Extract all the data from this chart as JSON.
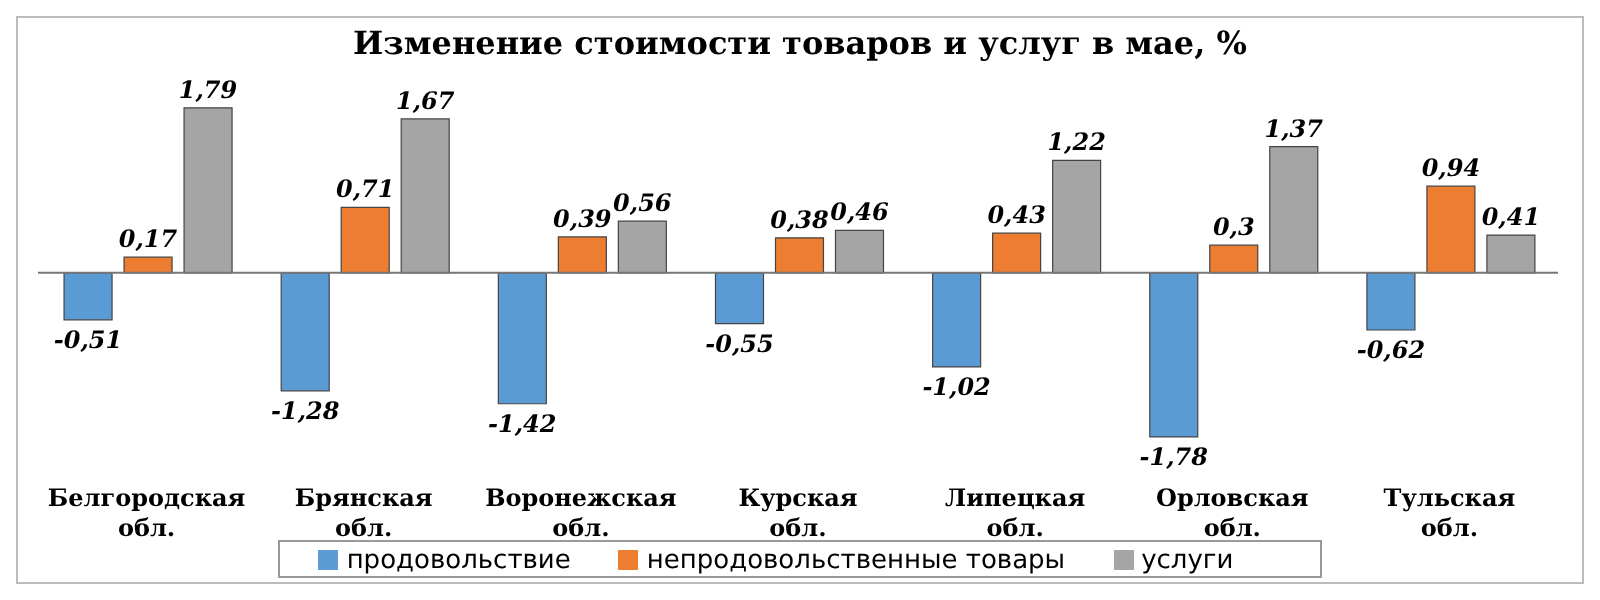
{
  "chart_data": {
    "type": "bar",
    "title": "Изменение стоимости товаров и услуг в мае, %",
    "categories": [
      "Белгородская обл.",
      "Брянская обл.",
      "Воронежская обл.",
      "Курская обл.",
      "Липецкая обл.",
      "Орловская обл.",
      "Тульская обл."
    ],
    "series": [
      {
        "name": "продовольствие",
        "color": "#5b9bd5",
        "values": [
          -0.51,
          -1.28,
          -1.42,
          -0.55,
          -1.02,
          -1.78,
          -0.62
        ],
        "value_labels": [
          "-0,51",
          "-1,28",
          "-1,42",
          "-0,55",
          "-1,02",
          "-1,78",
          "-0,62"
        ]
      },
      {
        "name": "непродовольственные товары",
        "color": "#ed7d31",
        "values": [
          0.17,
          0.71,
          0.39,
          0.38,
          0.43,
          0.3,
          0.94
        ],
        "value_labels": [
          "0,17",
          "0,71",
          "0,39",
          "0,38",
          "0,43",
          "0,3",
          "0,94"
        ]
      },
      {
        "name": "услуги",
        "color": "#a5a5a5",
        "values": [
          1.79,
          1.67,
          0.56,
          0.46,
          1.22,
          1.37,
          0.41
        ],
        "value_labels": [
          "1,79",
          "1,67",
          "0,56",
          "0,46",
          "1,22",
          "1,37",
          "0,41"
        ]
      }
    ],
    "legend": "bottom"
  }
}
